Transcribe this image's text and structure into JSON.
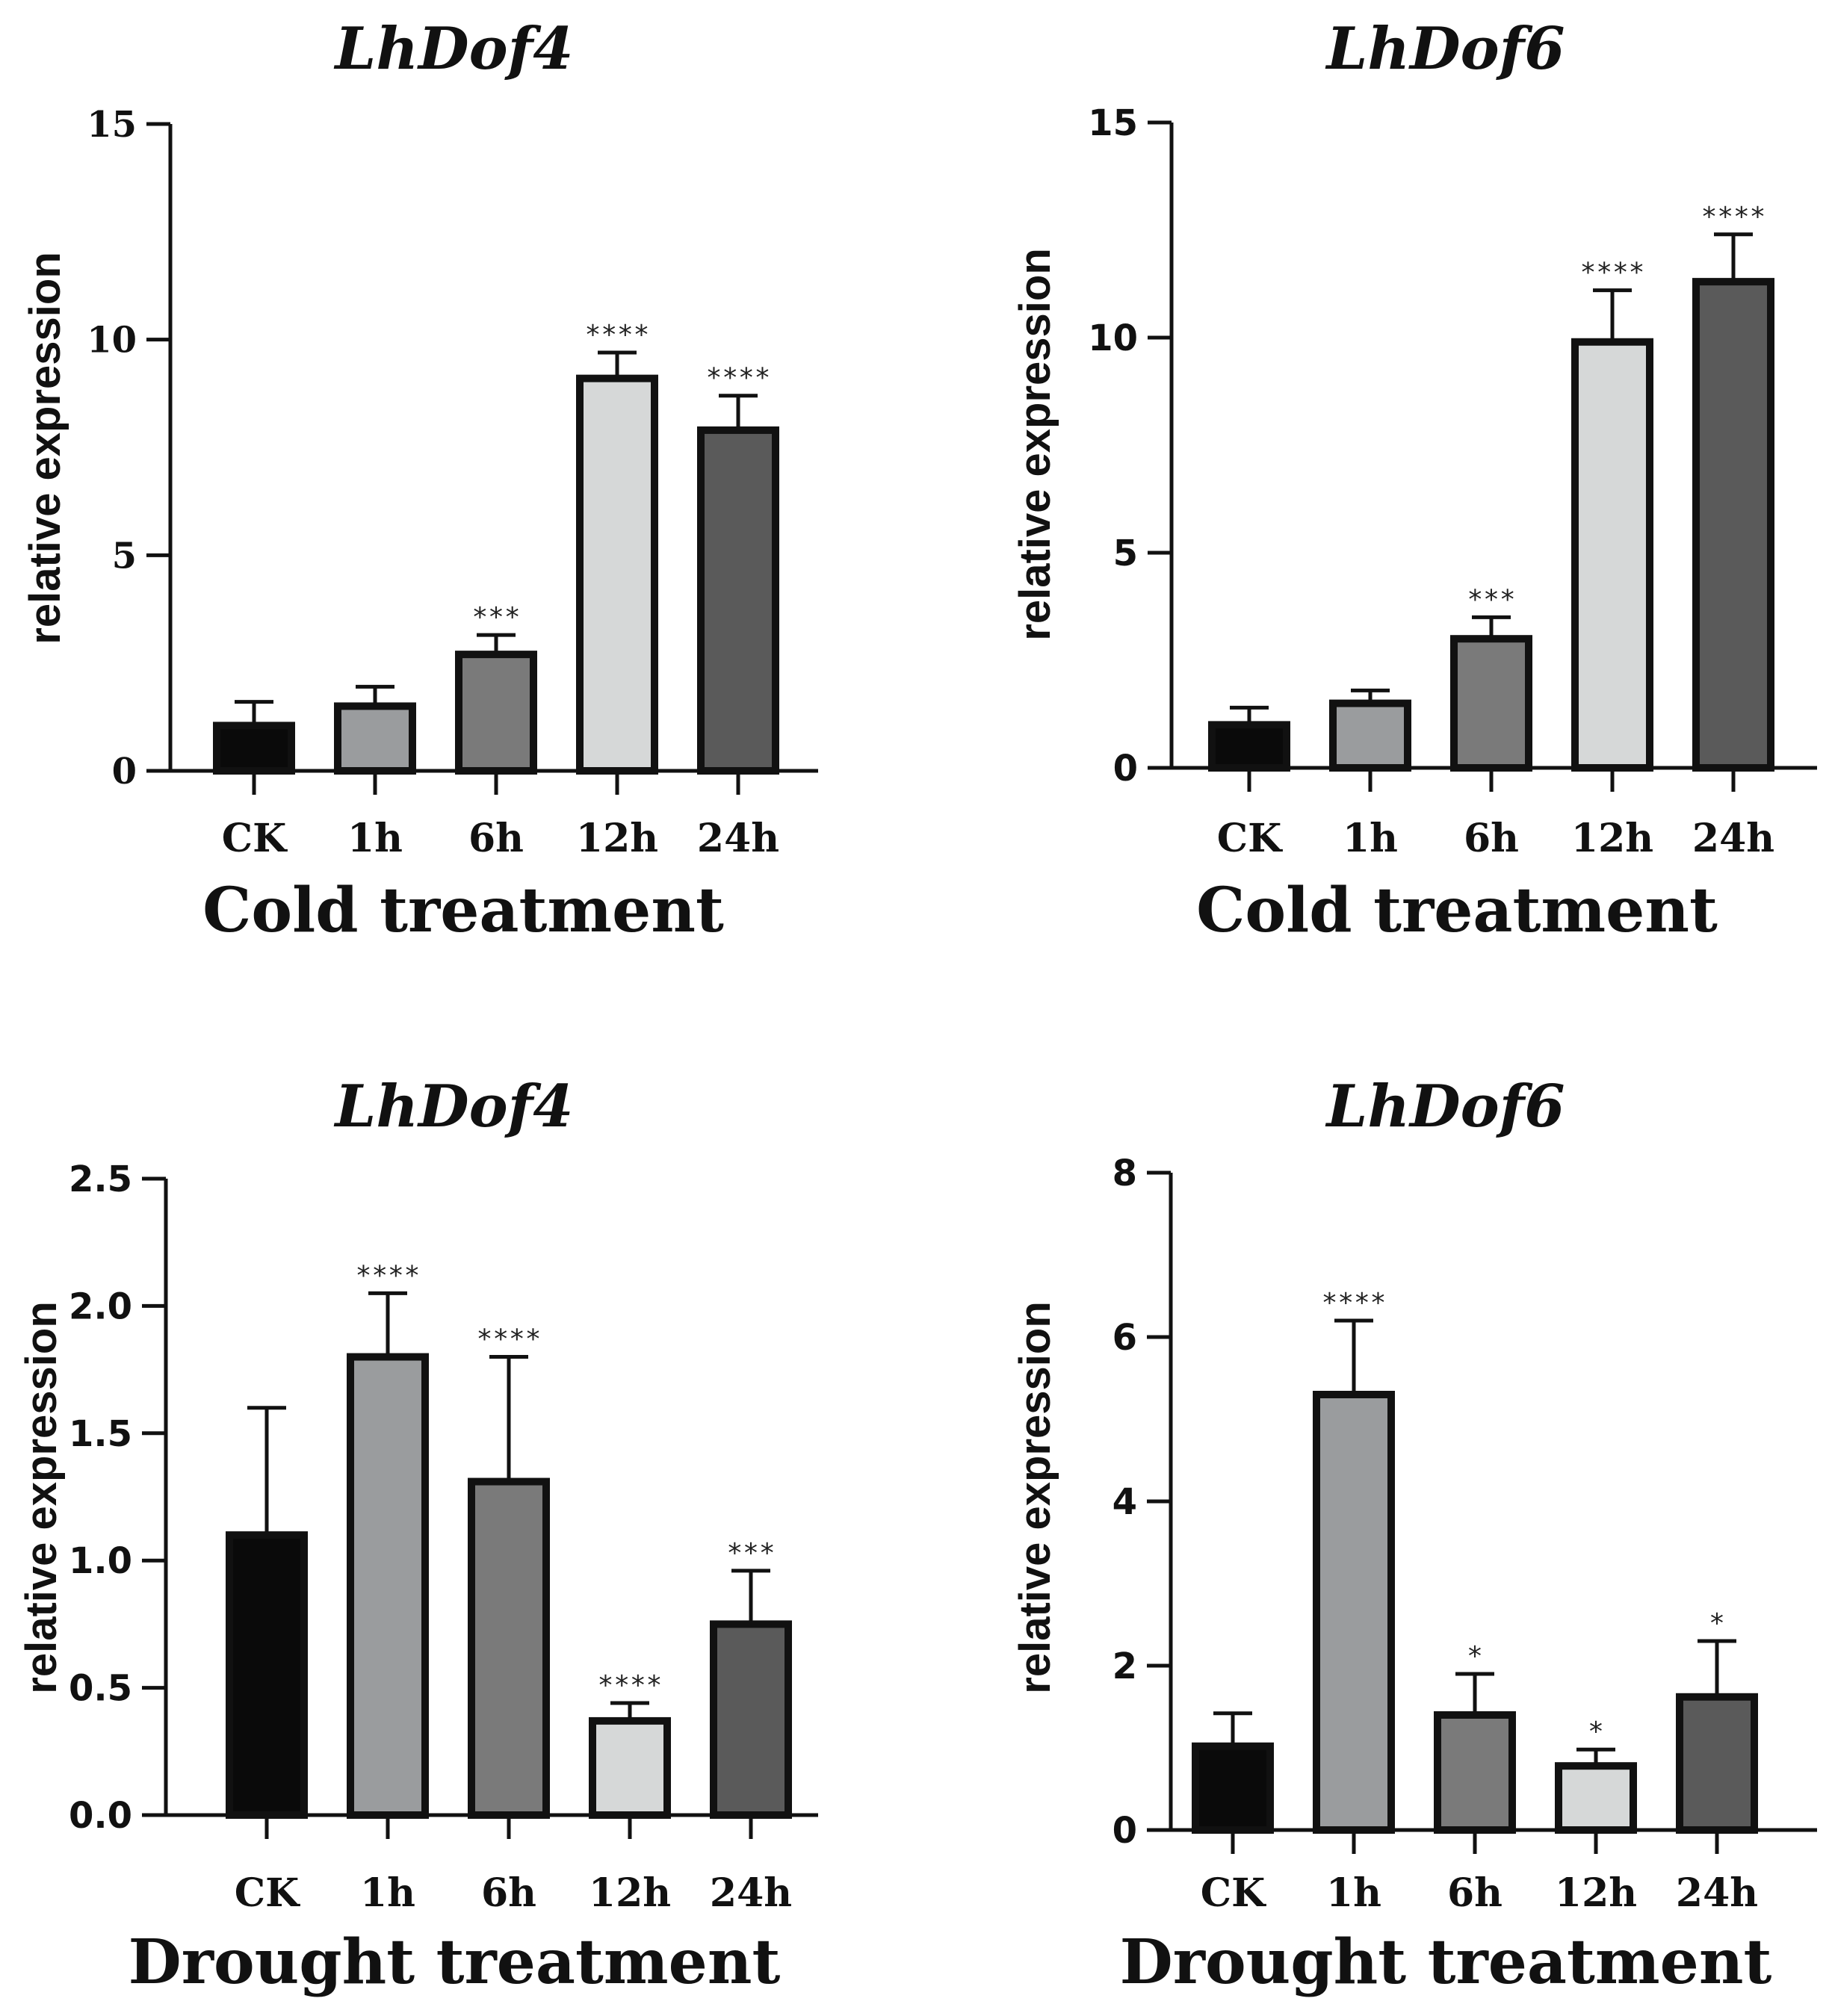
{
  "chart_data": [
    {
      "type": "bar",
      "title": "LhDof4",
      "xlabel": "Cold treatment",
      "ylabel": "relative expression",
      "categories": [
        "CK",
        "1h",
        "6h",
        "12h",
        "24h"
      ],
      "values": [
        1.05,
        1.5,
        2.7,
        9.1,
        7.9
      ],
      "errors": [
        0.55,
        0.45,
        0.45,
        0.6,
        0.8
      ],
      "significance": [
        "",
        "",
        "***",
        "****",
        "****"
      ],
      "ylim": [
        0,
        15
      ],
      "yticks": [
        "0",
        "5",
        "10",
        "15"
      ],
      "bar_colors": [
        "#0a0a0a",
        "#9a9c9e",
        "#7a7a7a",
        "#d6d8d8",
        "#5a5a5a"
      ]
    },
    {
      "type": "bar",
      "title": "LhDof6",
      "xlabel": "Cold treatment",
      "ylabel": "relative expression",
      "categories": [
        "CK",
        "1h",
        "6h",
        "12h",
        "24h"
      ],
      "values": [
        1.0,
        1.5,
        3.0,
        9.9,
        11.3
      ],
      "errors": [
        0.4,
        0.3,
        0.5,
        1.2,
        1.1
      ],
      "significance": [
        "",
        "",
        "***",
        "****",
        "****"
      ],
      "ylim": [
        0,
        15
      ],
      "yticks": [
        "0",
        "5",
        "10",
        "15"
      ],
      "bar_colors": [
        "#0a0a0a",
        "#9a9c9e",
        "#7a7a7a",
        "#d6d8d8",
        "#5a5a5a"
      ]
    },
    {
      "type": "bar",
      "title": "LhDof4",
      "xlabel": "Drought treatment",
      "ylabel": "relative expression",
      "categories": [
        "CK",
        "1h",
        "6h",
        "12h",
        "24h"
      ],
      "values": [
        1.1,
        1.8,
        1.31,
        0.37,
        0.75
      ],
      "errors": [
        0.5,
        0.25,
        0.49,
        0.07,
        0.21
      ],
      "significance": [
        "",
        "****",
        "****",
        "****",
        "***"
      ],
      "ylim": [
        0,
        2.5
      ],
      "yticks": [
        "0.0",
        "0.5",
        "1.0",
        "1.5",
        "2.0",
        "2.5"
      ],
      "bar_colors": [
        "#0a0a0a",
        "#9a9c9e",
        "#7a7a7a",
        "#d6d8d8",
        "#5a5a5a"
      ]
    },
    {
      "type": "bar",
      "title": "LhDof6",
      "xlabel": "Drought treatment",
      "ylabel": "relative expression",
      "categories": [
        "CK",
        "1h",
        "6h",
        "12h",
        "24h"
      ],
      "values": [
        1.02,
        5.3,
        1.4,
        0.78,
        1.62
      ],
      "errors": [
        0.4,
        0.9,
        0.5,
        0.2,
        0.68
      ],
      "significance": [
        "",
        "****",
        "*",
        "*",
        "*"
      ],
      "ylim": [
        0,
        8
      ],
      "yticks": [
        "0",
        "2",
        "4",
        "6",
        "8"
      ],
      "bar_colors": [
        "#0a0a0a",
        "#9a9c9e",
        "#7a7a7a",
        "#d6d8d8",
        "#5a5a5a"
      ]
    }
  ]
}
